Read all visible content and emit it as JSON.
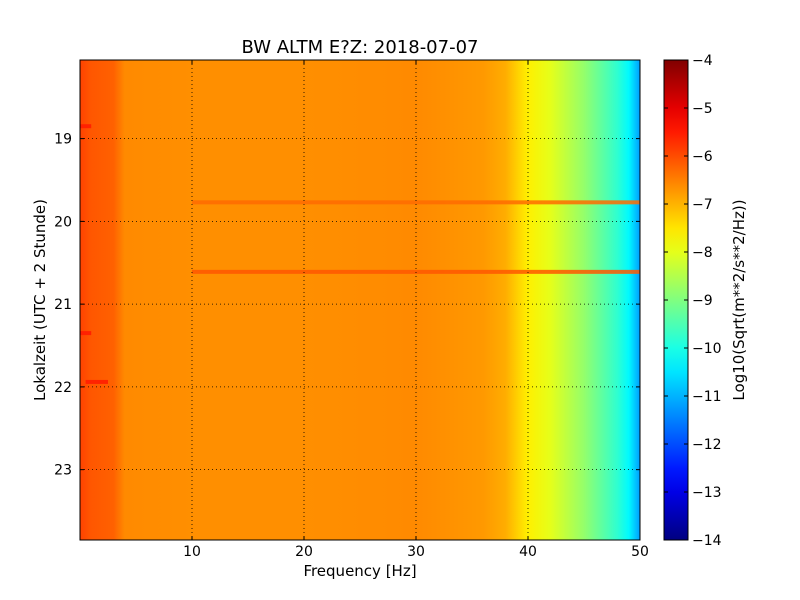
{
  "chart_data": {
    "type": "heatmap",
    "title": "BW ALTM E?Z: 2018-07-07",
    "xlabel": "Frequency [Hz]",
    "ylabel": "Lokalzeit (UTC + 2 Stunde)",
    "xlim": [
      0,
      50
    ],
    "ylim": [
      23.85,
      18.05
    ],
    "y_inverted": true,
    "xticks": [
      10,
      20,
      30,
      40,
      50
    ],
    "yticks": [
      19,
      20,
      21,
      22,
      23
    ],
    "grid": true,
    "colormap": "jet",
    "colorbar": {
      "label": "Log10(Sqrt(m**2/s**2/Hz))",
      "range": [
        -14,
        -4
      ],
      "ticks": [
        -4,
        -5,
        -6,
        -7,
        -8,
        -9,
        -10,
        -11,
        -12,
        -13,
        -14
      ]
    },
    "frequency_profile_hz": [
      0,
      1,
      3,
      4,
      10,
      20,
      30,
      36,
      38,
      40,
      42,
      45,
      48,
      49,
      50
    ],
    "frequency_profile_log10_amplitude": [
      -5.9,
      -6.1,
      -6.2,
      -6.6,
      -6.65,
      -6.65,
      -6.6,
      -6.75,
      -6.95,
      -7.6,
      -8.0,
      -8.8,
      -9.8,
      -10.3,
      -11.2
    ],
    "horizontal_features": [
      {
        "time_h": 19.77,
        "f_from_hz": 10,
        "f_to_hz": 50,
        "log10_amplitude": -6.3
      },
      {
        "time_h": 20.61,
        "f_from_hz": 10,
        "f_to_hz": 50,
        "log10_amplitude": -6.1
      },
      {
        "time_h": 18.85,
        "f_from_hz": 0,
        "f_to_hz": 1,
        "log10_amplitude": -5.5
      },
      {
        "time_h": 21.35,
        "f_from_hz": 0,
        "f_to_hz": 1,
        "log10_amplitude": -5.5
      },
      {
        "time_h": 21.94,
        "f_from_hz": 0.5,
        "f_to_hz": 2.5,
        "log10_amplitude": -5.5
      }
    ]
  }
}
